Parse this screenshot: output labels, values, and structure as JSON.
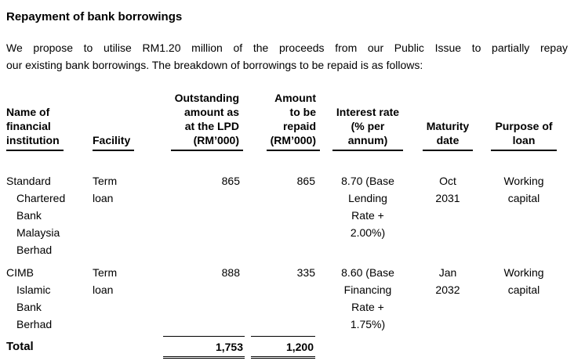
{
  "doc": {
    "heading": "Repayment of bank borrowings",
    "intro_line1": "We propose to utilise RM1.20 million of the proceeds from our Public Issue to partially repay",
    "intro_line2": "our existing bank borrowings. The breakdown of borrowings to be repaid is as follows:"
  },
  "table": {
    "headers": [
      "Name of\nfinancial\ninstitution",
      "Facility",
      "Outstanding\namount as\nat the LPD\n(RM’000)",
      "Amount\nto be\nrepaid\n(RM’000)",
      "Interest rate\n(% per\nannum)",
      "Maturity\ndate",
      "Purpose of\nloan"
    ],
    "rows": [
      {
        "institution": "Standard\nChartered\nBank\nMalaysia\nBerhad",
        "facility": "Term\nloan",
        "outstanding": "865",
        "repaid": "865",
        "interest": "8.70 (Base\nLending\nRate +\n2.00%)",
        "maturity": "Oct\n2031",
        "purpose": "Working\ncapital"
      },
      {
        "institution": "CIMB\nIslamic\nBank\nBerhad",
        "facility": "Term\nloan",
        "outstanding": "888",
        "repaid": "335",
        "interest": "8.60 (Base\nFinancing\nRate +\n1.75%)",
        "maturity": "Jan\n2032",
        "purpose": "Working\ncapital"
      }
    ],
    "total": {
      "label": "Total",
      "outstanding": "1,753",
      "repaid": "1,200"
    }
  }
}
